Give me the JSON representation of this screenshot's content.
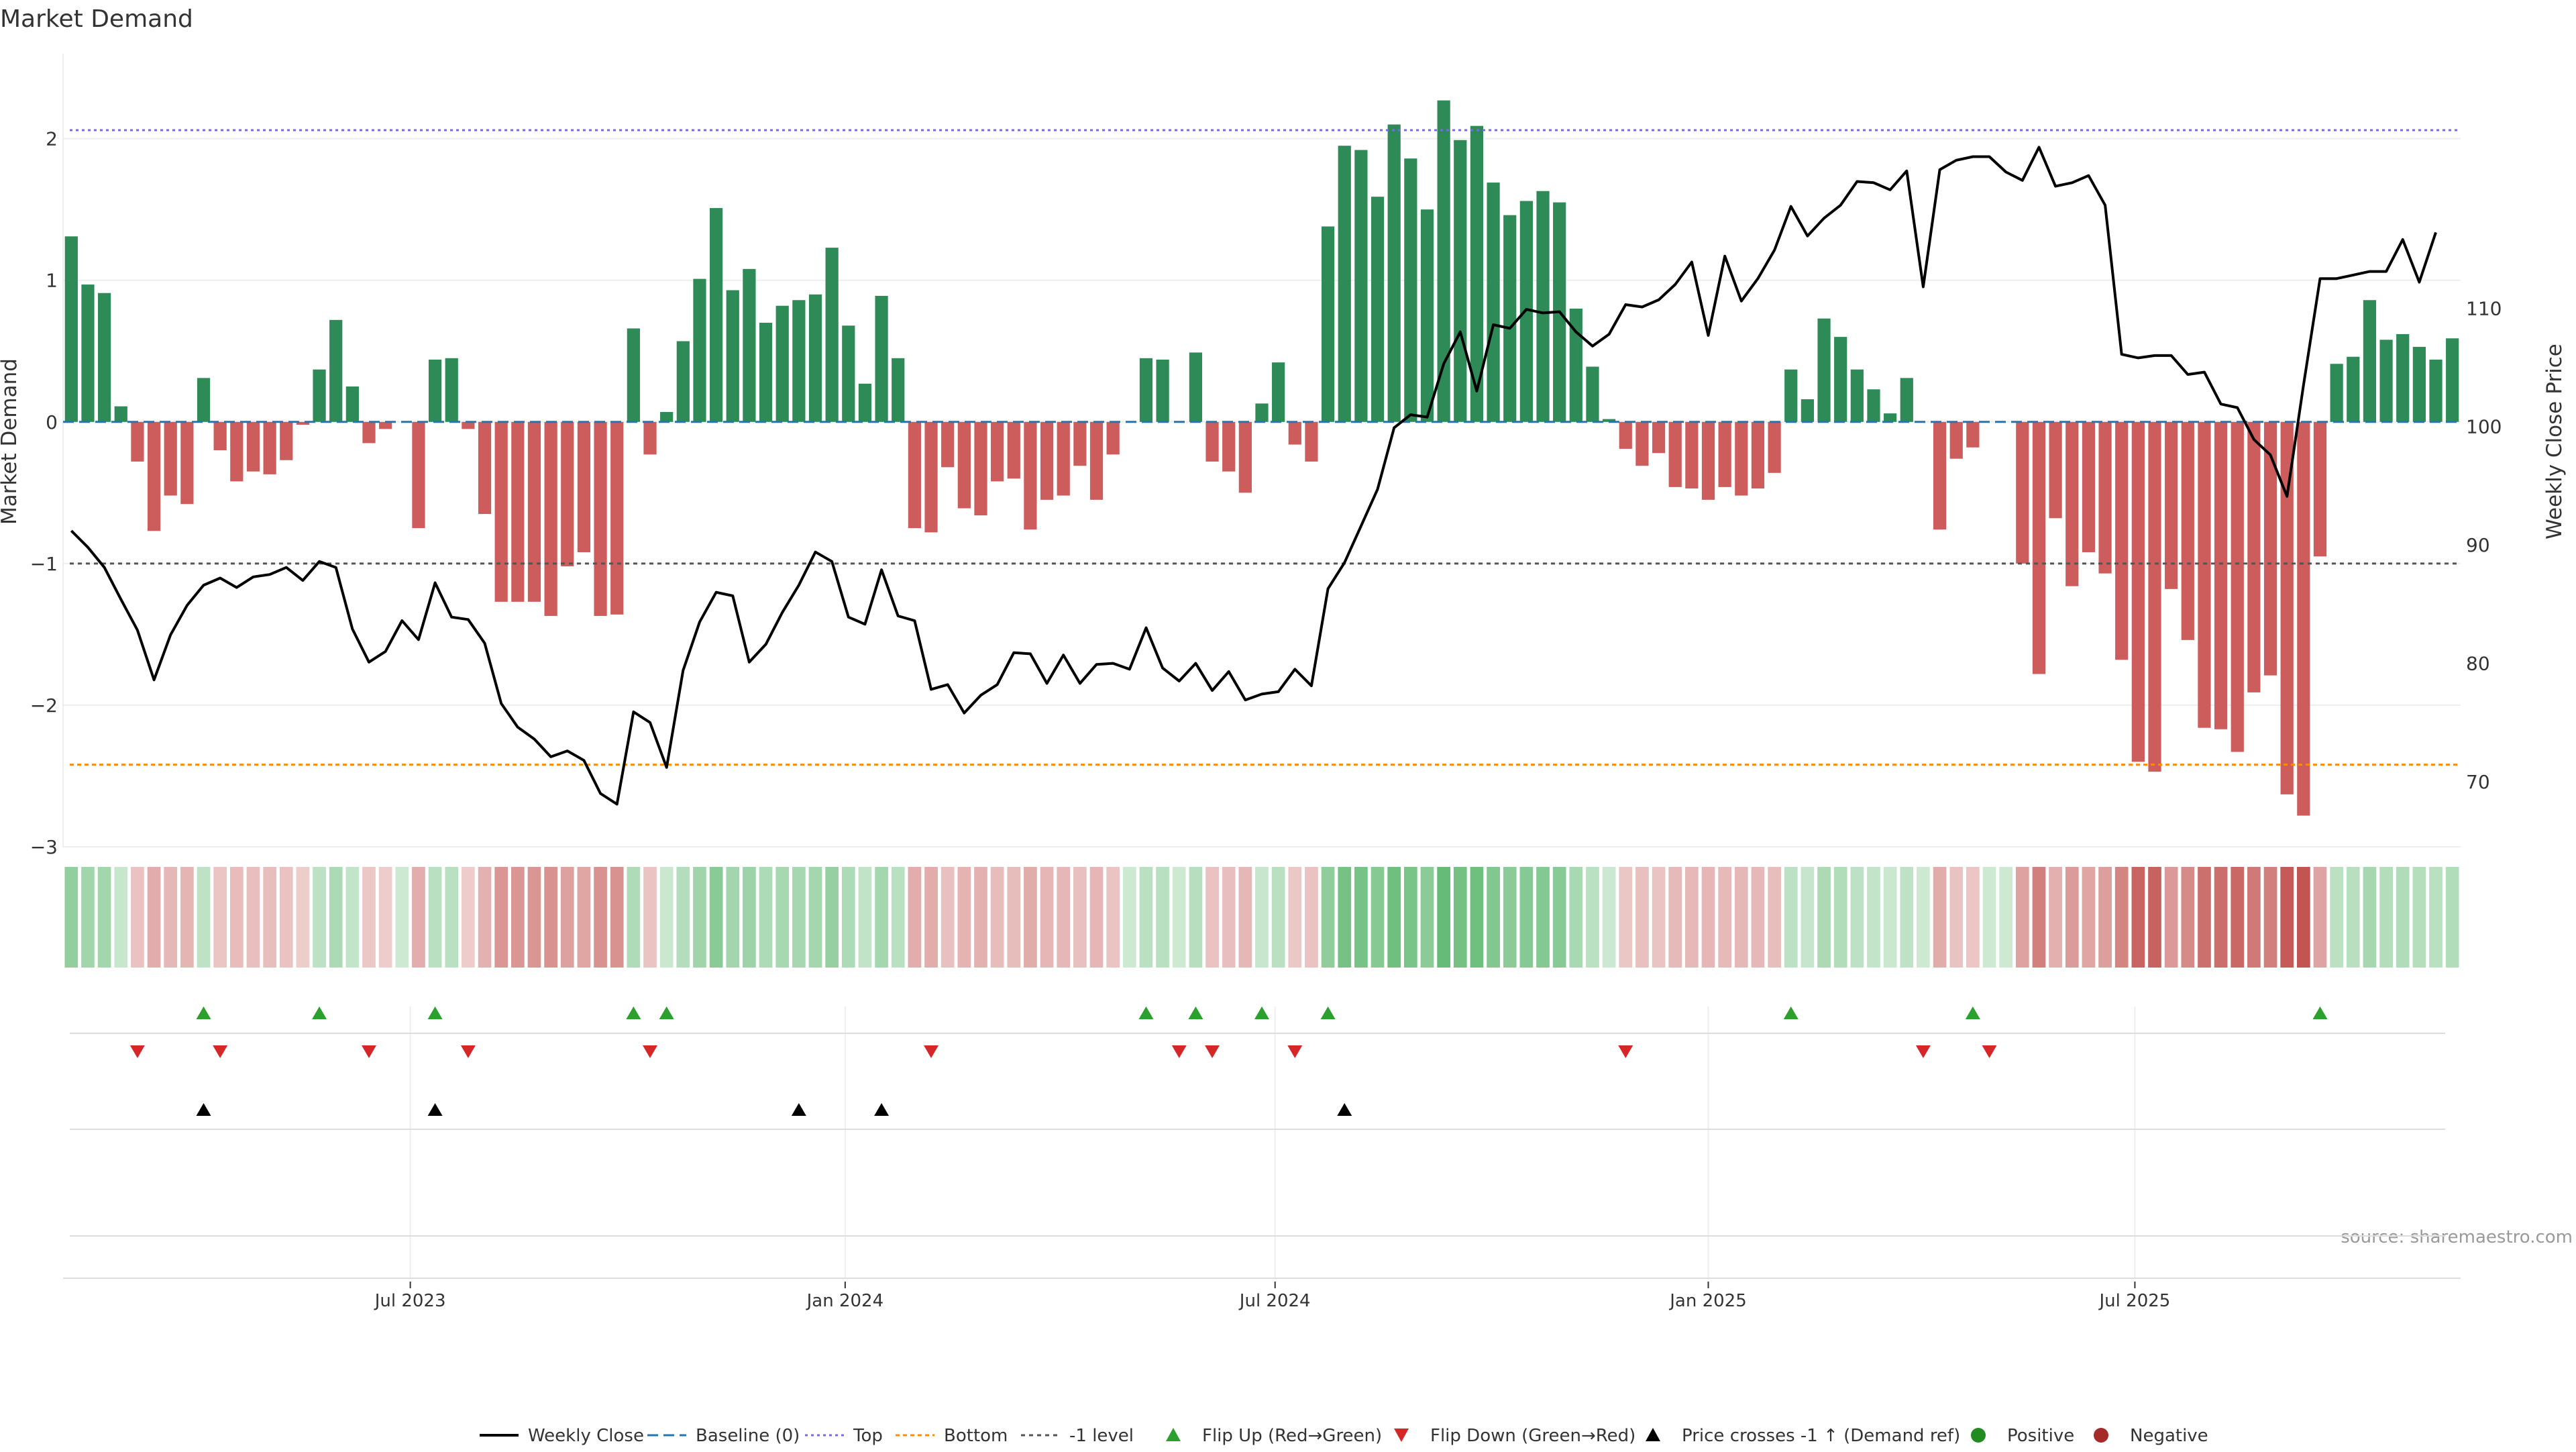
{
  "chart_data": {
    "type": "bar",
    "title": "Market Demand",
    "ylabel_left": "Market Demand",
    "ylabel_right": "Weekly Close Price",
    "source": "source: sharemaestro.com",
    "y_left_range": [
      -3.0,
      2.6
    ],
    "y_left_ticks": [
      2,
      1,
      0,
      -1,
      -2,
      -3
    ],
    "y_left_tick_labels": [
      "2",
      "1",
      "0",
      "−1",
      "−2",
      "−3"
    ],
    "y_right_range": [
      64.5,
      131.5
    ],
    "y_right_ticks": [
      110,
      100,
      90,
      80,
      70
    ],
    "y_right_tick_labels": [
      "110",
      "100",
      "90",
      "80",
      "70"
    ],
    "x_date_ticks": [
      {
        "week": 20.5,
        "label": "Jul 2023"
      },
      {
        "week": 46.8,
        "label": "Jan 2024"
      },
      {
        "week": 72.8,
        "label": "Jul 2024"
      },
      {
        "week": 99,
        "label": "Jan 2025"
      },
      {
        "week": 124.8,
        "label": "Jul 2025"
      }
    ],
    "reference_lines": {
      "top": 2.06,
      "bottom": -2.42,
      "minus_one": -1.0,
      "baseline": 0
    },
    "colors": {
      "positive_bar": "#2e8b57",
      "negative_bar": "#cd5c5c",
      "price_line": "#000000",
      "baseline": "#1f77b4",
      "top_line": "#7b68ee",
      "bottom_line": "#ff8c00",
      "minus_one_line": "#555555",
      "flip_up": "#2ca02c",
      "flip_down": "#d62728",
      "cross_marker": "#000000",
      "positive_dot": "#228b22",
      "negative_dot": "#a52a2a"
    },
    "demand": [
      1.31,
      0.97,
      0.91,
      0.11,
      -0.28,
      -0.77,
      -0.52,
      -0.58,
      0.31,
      -0.2,
      -0.42,
      -0.35,
      -0.37,
      -0.27,
      -0.02,
      0.37,
      0.72,
      0.25,
      -0.15,
      -0.05,
      0.0,
      -0.75,
      0.44,
      0.45,
      -0.05,
      -0.65,
      -1.27,
      -1.27,
      -1.27,
      -1.37,
      -1.02,
      -0.92,
      -1.37,
      -1.36,
      0.66,
      -0.23,
      0.07,
      0.57,
      1.01,
      1.51,
      0.93,
      1.08,
      0.7,
      0.82,
      0.86,
      0.9,
      1.23,
      0.68,
      0.27,
      0.89,
      0.45,
      -0.75,
      -0.78,
      -0.32,
      -0.61,
      -0.66,
      -0.42,
      -0.4,
      -0.76,
      -0.55,
      -0.52,
      -0.31,
      -0.55,
      -0.23,
      0.0,
      0.45,
      0.44,
      0.0,
      0.49,
      -0.28,
      -0.35,
      -0.5,
      0.13,
      0.42,
      -0.16,
      -0.28,
      1.38,
      1.95,
      1.92,
      1.59,
      2.1,
      1.86,
      1.5,
      2.27,
      1.99,
      2.09,
      1.69,
      1.46,
      1.56,
      1.63,
      1.55,
      0.8,
      0.39,
      0.02,
      -0.19,
      -0.31,
      -0.22,
      -0.46,
      -0.47,
      -0.55,
      -0.46,
      -0.52,
      -0.47,
      -0.36,
      0.37,
      0.16,
      0.73,
      0.6,
      0.37,
      0.23,
      0.06,
      0.31,
      0.0,
      -0.76,
      -0.26,
      -0.18,
      0.0,
      0.0,
      -1.0,
      -1.78,
      -0.68,
      -1.16,
      -0.92,
      -1.07,
      -1.68,
      -2.4,
      -2.47,
      -1.18,
      -1.54,
      -2.16,
      -2.17,
      -2.33,
      -1.91,
      -1.79,
      -2.63,
      -2.78,
      -0.95,
      0.41,
      0.46,
      0.86,
      0.58,
      0.62,
      0.53,
      0.44,
      0.59
    ],
    "price": [
      91.2,
      89.8,
      88.1,
      85.4,
      82.8,
      78.6,
      82.4,
      84.9,
      86.6,
      87.2,
      86.4,
      87.3,
      87.5,
      88.1,
      87.0,
      88.6,
      88.1,
      82.9,
      80.1,
      81.0,
      83.6,
      82.0,
      86.8,
      83.9,
      83.7,
      81.7,
      76.6,
      74.6,
      73.6,
      72.1,
      72.6,
      71.8,
      69.0,
      68.1,
      75.9,
      75.0,
      71.2,
      79.4,
      83.5,
      86.0,
      85.7,
      80.1,
      81.6,
      84.3,
      86.6,
      89.4,
      88.6,
      83.9,
      83.3,
      87.9,
      84.0,
      83.6,
      77.8,
      78.2,
      75.8,
      77.3,
      78.2,
      80.9,
      80.8,
      78.3,
      80.7,
      78.3,
      79.9,
      80.0,
      79.5,
      83.0,
      79.6,
      78.5,
      80.0,
      77.7,
      79.3,
      76.9,
      77.4,
      77.6,
      79.5,
      78.1,
      86.3,
      88.5,
      91.6,
      94.7,
      99.9,
      101.0,
      100.8,
      105.3,
      108.0,
      103.0,
      108.6,
      108.3,
      109.9,
      109.6,
      109.7,
      108.0,
      106.8,
      107.8,
      110.3,
      110.1,
      110.7,
      112.0,
      113.9,
      107.7,
      114.4,
      110.6,
      112.5,
      114.9,
      118.6,
      116.1,
      117.6,
      118.7,
      120.7,
      120.6,
      120.0,
      121.6,
      111.8,
      121.7,
      122.5,
      122.8,
      122.8,
      121.5,
      120.8,
      123.6,
      120.3,
      120.6,
      121.2,
      118.7,
      106.1,
      105.8,
      106.0,
      106.0,
      104.4,
      104.6,
      101.9,
      101.6,
      98.9,
      97.6,
      94.1,
      103.5,
      112.5,
      112.5,
      112.8,
      113.1,
      113.1,
      115.8,
      112.2,
      116.4
    ],
    "flip_up_weeks": [
      8,
      15,
      22,
      34,
      36,
      65,
      68,
      72,
      76,
      104,
      115,
      136
    ],
    "flip_down_weeks": [
      4,
      9,
      18,
      24,
      35,
      52,
      67,
      69,
      74,
      94,
      112,
      116
    ],
    "cross_weeks": [
      8,
      22,
      44,
      49,
      77
    ],
    "legend": [
      {
        "key": "line",
        "label": "Weekly Close"
      },
      {
        "key": "baseline",
        "label": "Baseline (0)"
      },
      {
        "key": "top",
        "label": "Top"
      },
      {
        "key": "bottom",
        "label": "Bottom"
      },
      {
        "key": "minus_one",
        "label": "-1 level"
      },
      {
        "key": "flip_up",
        "label": "Flip Up (Red→Green)"
      },
      {
        "key": "flip_down",
        "label": "Flip Down (Green→Red)"
      },
      {
        "key": "cross",
        "label": "Price crosses -1 ↑ (Demand ref)"
      },
      {
        "key": "positive",
        "label": "Positive"
      },
      {
        "key": "negative",
        "label": "Negative"
      }
    ]
  }
}
